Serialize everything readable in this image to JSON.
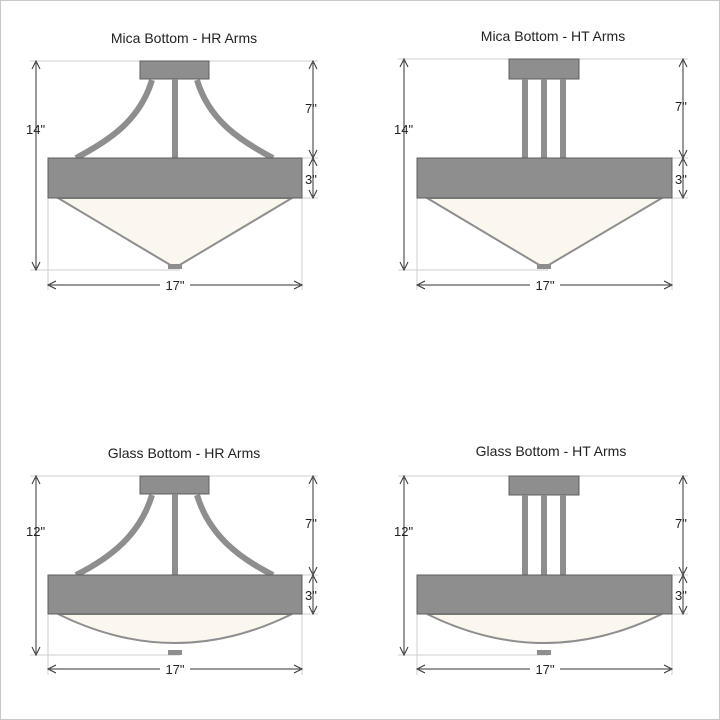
{
  "colors": {
    "border": "#c9c9c9",
    "metal": "#8e8e8e",
    "metal_dark": "#5f5f5f",
    "glass": "#fbf7ee",
    "guide": "#cfcfcf",
    "dimension": "#333333"
  },
  "panels": [
    {
      "title": "Mica Bottom - HR Arms",
      "arms": "HR",
      "bottom": "mica",
      "overall_height": "14\"",
      "arm_height": "7\"",
      "band_height": "3\"",
      "width": "17\""
    },
    {
      "title": "Mica Bottom - HT Arms",
      "arms": "HT",
      "bottom": "mica",
      "overall_height": "14\"",
      "arm_height": "7\"",
      "band_height": "3\"",
      "width": "17\""
    },
    {
      "title": "Glass Bottom - HR Arms",
      "arms": "HR",
      "bottom": "glass",
      "overall_height": "12\"",
      "arm_height": "7\"",
      "band_height": "3\"",
      "width": "17\""
    },
    {
      "title": "Glass Bottom - HT Arms",
      "arms": "HT",
      "bottom": "glass",
      "overall_height": "12\"",
      "arm_height": "7\"",
      "band_height": "3\"",
      "width": "17\""
    }
  ]
}
